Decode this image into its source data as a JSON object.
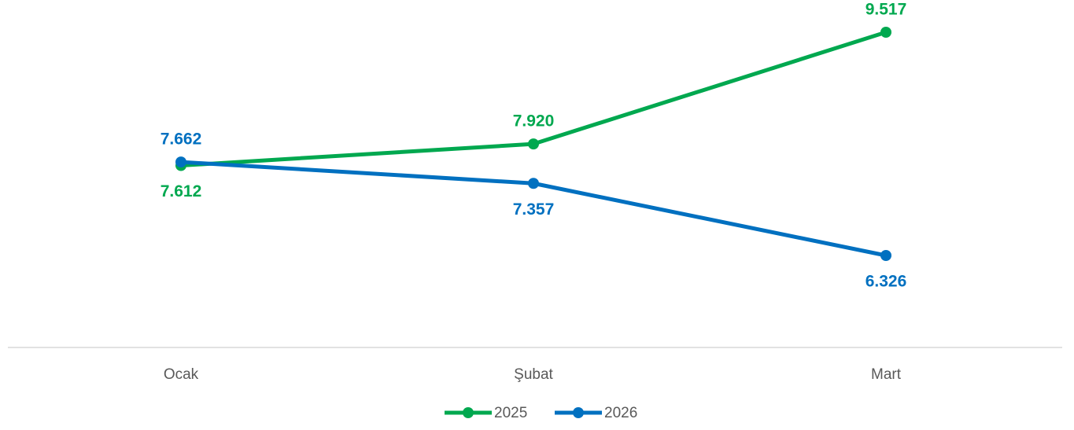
{
  "chart_data": {
    "type": "line",
    "categories": [
      "Ocak",
      "Şubat",
      "Mart"
    ],
    "series": [
      {
        "name": "2025",
        "color": "#00a84f",
        "values": [
          7612,
          7920,
          9517
        ],
        "value_labels": [
          "7.612",
          "7.920",
          "9.517"
        ]
      },
      {
        "name": "2026",
        "color": "#0070c0",
        "values": [
          7662,
          7357,
          6326
        ],
        "value_labels": [
          "7.662",
          "7.357",
          "6.326"
        ]
      }
    ]
  }
}
